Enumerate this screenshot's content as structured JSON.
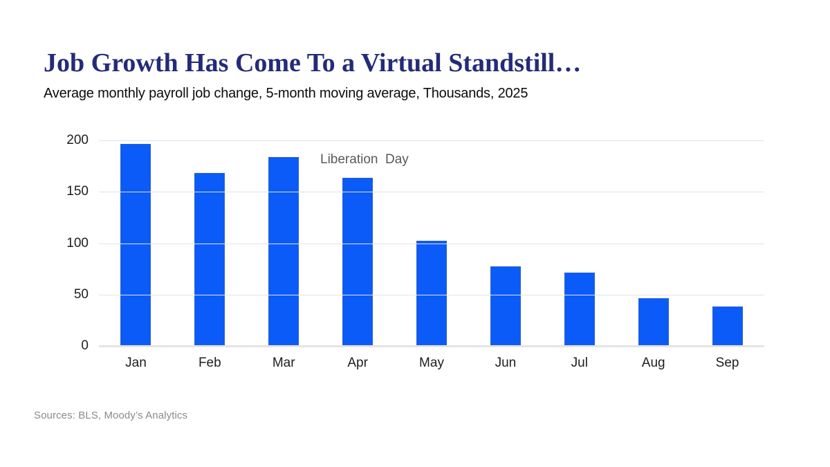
{
  "header": {
    "title": "Job Growth Has Come To a Virtual Standstill…",
    "subtitle": "Average monthly payroll job change, 5-month moving average, Thousands, 2025"
  },
  "annotation": {
    "label": "Liberation  Day"
  },
  "footer": {
    "sources": "Sources: BLS, Moody’s Analytics"
  },
  "colors": {
    "bar": "#0b5bf8",
    "title": "#242b78",
    "annotation": "#58595b",
    "grid": "#e2e2e2",
    "axis_text": "#1d1d1d",
    "source_text": "#8a8a8a",
    "background": "#ffffff"
  },
  "chart_data": {
    "type": "bar",
    "title": "Job Growth Has Come To a Virtual Standstill…",
    "subtitle": "Average monthly payroll job change, 5-month moving average, Thousands, 2025",
    "categories": [
      "Jan",
      "Feb",
      "Mar",
      "Apr",
      "May",
      "Jun",
      "Jul",
      "Aug",
      "Sep"
    ],
    "values": [
      196,
      168,
      183,
      163,
      102,
      77,
      71,
      46,
      38
    ],
    "series_name": "Average monthly payroll job change (thousands)",
    "xlabel": "",
    "ylabel": "Thousands",
    "ylim": [
      0,
      200
    ],
    "yticks": [
      0,
      50,
      100,
      150,
      200
    ],
    "grid": true,
    "legend": false,
    "annotations": [
      {
        "text": "Liberation Day",
        "near_category": "Apr"
      }
    ]
  }
}
